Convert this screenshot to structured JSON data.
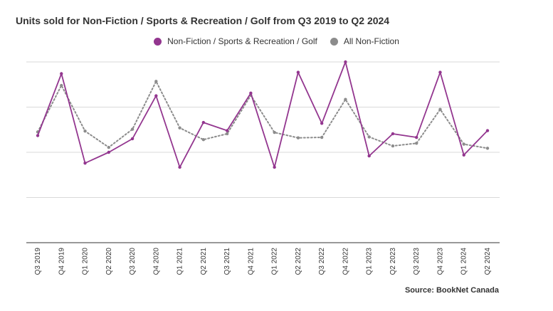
{
  "chart_data": {
    "type": "line",
    "title": "Units sold for Non-Fiction / Sports & Recreation / Golf from Q3 2019 to Q2 2024",
    "categories": [
      "Q3 2019",
      "Q4 2019",
      "Q1 2020",
      "Q2 2020",
      "Q3 2020",
      "Q4 2020",
      "Q1 2021",
      "Q2 2021",
      "Q3 2021",
      "Q4 2021",
      "Q1 2022",
      "Q2 2022",
      "Q3 2022",
      "Q4 2022",
      "Q1 2023",
      "Q2 2023",
      "Q3 2023",
      "Q4 2023",
      "Q1 2024",
      "Q2 2024"
    ],
    "series": [
      {
        "name": "Non-Fiction / Sports & Recreation / Golf",
        "color": "#93368f",
        "style": "solid",
        "values": [
          1.37,
          2.74,
          0.76,
          1.0,
          1.3,
          2.25,
          0.67,
          1.66,
          1.48,
          2.31,
          0.67,
          2.77,
          1.64,
          3.0,
          0.92,
          1.41,
          1.33,
          2.77,
          0.94,
          1.48
        ]
      },
      {
        "name": "All Non-Fiction",
        "color": "#8c8c8c",
        "style": "dotted",
        "values": [
          1.45,
          2.48,
          1.47,
          1.11,
          1.51,
          2.57,
          1.54,
          1.28,
          1.41,
          2.26,
          1.44,
          1.32,
          1.33,
          2.17,
          1.34,
          1.14,
          1.2,
          1.95,
          1.18,
          1.09
        ]
      }
    ],
    "ylim": [
      -1,
      3
    ],
    "y_gridlines": [
      0,
      1,
      2,
      3
    ],
    "y_tick_labels_shown": false,
    "legend_position": "top-center",
    "grid": "horizontal"
  },
  "legend": {
    "item1": "Non-Fiction / Sports & Recreation / Golf",
    "item2": "All Non-Fiction"
  },
  "source": "Source: BookNet Canada"
}
